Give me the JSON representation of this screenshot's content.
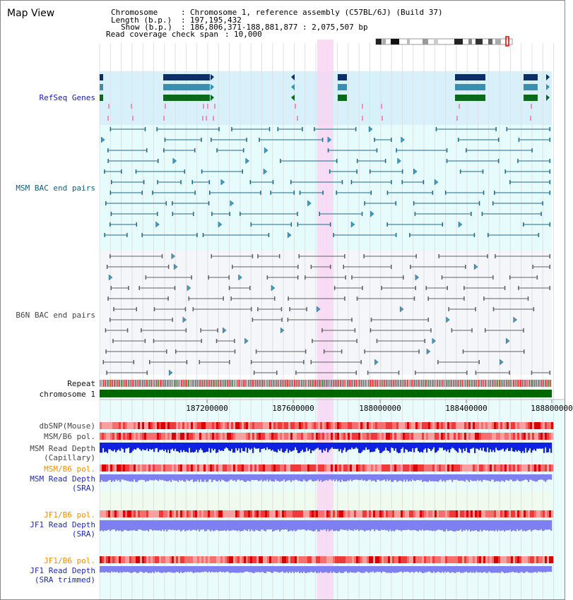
{
  "title": "Map View",
  "header": {
    "chromosome_key": "Chromosome",
    "chromosome_value": "Chromosome 1, reference assembly (C57BL/6J) (Build 37)",
    "length_key": "Length (b.p.)",
    "length_value": "197,195,432",
    "show_key": "Show (b.p.)",
    "show_value": "186,806,371-188,881,877 : 2,075,507 bp",
    "coverage_key": "Read coverage check span",
    "coverage_value": "10,000"
  },
  "track_labels": {
    "refseq": "RefSeq Genes",
    "msm_bac": "MSM BAC end pairs",
    "b6n_bac": "B6N BAC end pairs",
    "repeat": "Repeat",
    "chromosome": "chromosome 1",
    "dbsnp": "dbSNP(Mouse)",
    "msm_b6_pol_1": "MSM/B6 pol.",
    "msm_depth_cap_1": "MSM Read Depth",
    "msm_depth_cap_2": "(Capillary)",
    "msm_b6_pol_2": "MSM/B6 pol.",
    "msm_depth_sra_1": "MSM Read Depth",
    "msm_depth_sra_2": "(SRA)",
    "jf1_b6_pol_1": "JF1/B6 pol.",
    "jf1_depth_sra_1": "JF1 Read Depth",
    "jf1_depth_sra_2": "(SRA)",
    "jf1_b6_pol_2": "JF1/B6 pol.",
    "jf1_depth_trim_1": "JF1 Read Depth",
    "jf1_depth_trim_2": "(SRA trimmed)"
  },
  "axis_ticks": [
    "187200000",
    "187600000",
    "188000000",
    "188400000",
    "188800000"
  ],
  "colors": {
    "refseq_bg": "#d8f0fa",
    "msm_bg": "#e6fbfb",
    "b6n_bg": "#f4f6fa",
    "highlight": "#f8d6f2",
    "msm_feature": "#1e6a8a",
    "b6n_feature": "#606060",
    "chromosome_bar": "#006600",
    "depth_dark": "#1020e0",
    "depth_light": "#7f80f0",
    "pol_red": "#f03030"
  }
}
